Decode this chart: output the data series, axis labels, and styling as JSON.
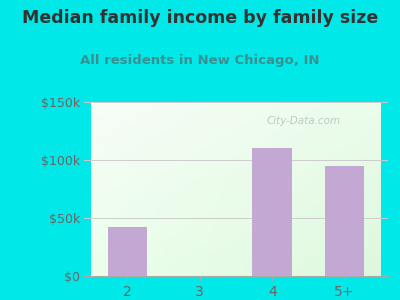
{
  "title": "Median family income by family size",
  "subtitle": "All residents in New Chicago, IN",
  "categories": [
    "2",
    "3",
    "4",
    "5+"
  ],
  "values": [
    42000,
    0,
    110000,
    95000
  ],
  "bar_color": "#c4a8d4",
  "ylim": [
    0,
    150000
  ],
  "yticks": [
    0,
    50000,
    100000,
    150000
  ],
  "ytick_labels": [
    "$0",
    "$50k",
    "$100k",
    "$150k"
  ],
  "outer_bg": "#00e8e8",
  "title_color": "#333333",
  "subtitle_color": "#3a9090",
  "tick_color": "#666666",
  "watermark": "City-Data.com",
  "title_fontsize": 12.5,
  "subtitle_fontsize": 9.5,
  "grid_color": "#cccccc"
}
